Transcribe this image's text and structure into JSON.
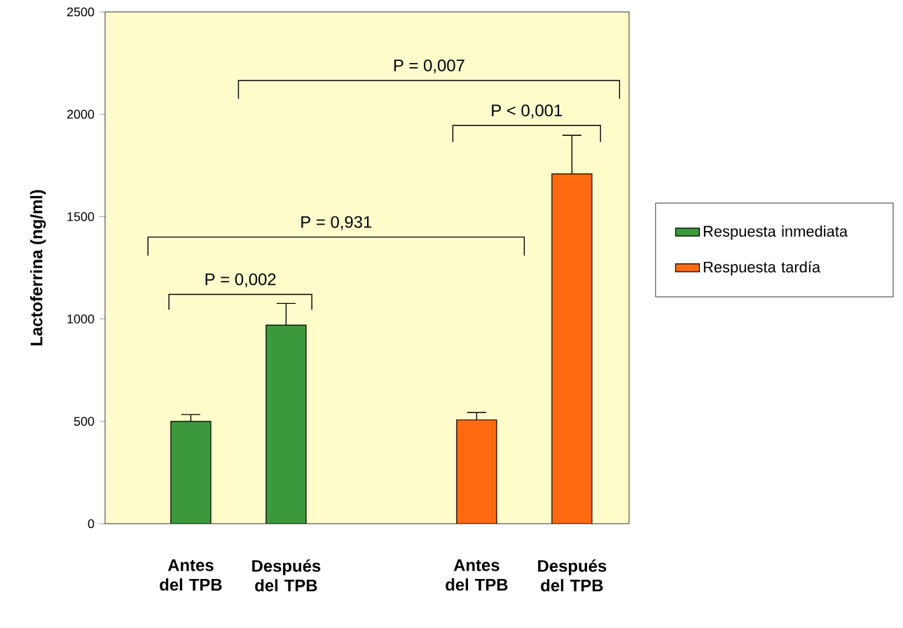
{
  "chart_data": {
    "type": "bar",
    "categories": [
      "Antes del TPB",
      "Después del TPB",
      null,
      "Antes del TPB",
      "Después del TPB"
    ],
    "ylabel": "Lactoferrina (ng/ml)",
    "series": [
      {
        "name": "Respuesta inmediata",
        "color": "#3a9a3a",
        "values": [
          500,
          970,
          null,
          null,
          null
        ],
        "errors": [
          [
            500,
            533
          ],
          [
            970,
            1076
          ],
          null,
          null,
          null
        ]
      },
      {
        "name": "Respuesta tardía",
        "color": "#ff6a10",
        "values": [
          null,
          null,
          null,
          507,
          1709
        ],
        "errors": [
          null,
          null,
          null,
          [
            507,
            543
          ],
          [
            1709,
            1897
          ]
        ]
      }
    ],
    "ylim": [
      0,
      2500
    ],
    "yticks": [
      0,
      500,
      1000,
      1500,
      2000,
      2500
    ],
    "legend": "right",
    "annotations": [
      "P = 0,007",
      "P < 0,001",
      "P = 0,931",
      "P = 0,002"
    ]
  }
}
